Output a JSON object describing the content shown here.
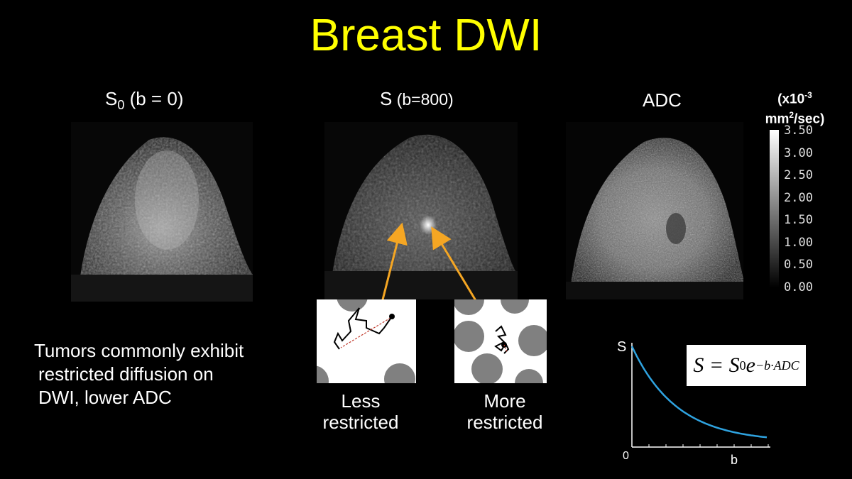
{
  "title": "Breast DWI",
  "panels": [
    {
      "label_main": "S",
      "label_sub": "0",
      "label_rest": " (b = 0)"
    },
    {
      "label_main": "S",
      "label_rest": " (b=800)"
    },
    {
      "label_main": "ADC"
    }
  ],
  "colorbar": {
    "unit_line1_pre": "(x10",
    "unit_line1_sup": "-3",
    "unit_line2_pre": "mm",
    "unit_line2_sup": "2",
    "unit_line2_post": "/sec)",
    "ticks": [
      "3.50",
      "3.00",
      "2.50",
      "2.00",
      "1.50",
      "1.00",
      "0.50",
      "0.00"
    ]
  },
  "diffusion": {
    "less_line1": "Less",
    "less_line2": "restricted",
    "more_line1": "More",
    "more_line2": "restricted"
  },
  "tumor_text": {
    "line1": "Tumors commonly exhibit",
    "line2": "restricted diffusion on",
    "line3": "DWI, lower ADC"
  },
  "graph": {
    "ylabel": "S",
    "xlabel": "b",
    "origin": "0",
    "curve_color": "#2fa3e0",
    "formula_lhs": "S = S",
    "formula_sub": "0",
    "formula_base": "e",
    "formula_exp": "−b·ADC"
  },
  "colors": {
    "title": "#ffff00",
    "arrow": "#f5a623"
  }
}
